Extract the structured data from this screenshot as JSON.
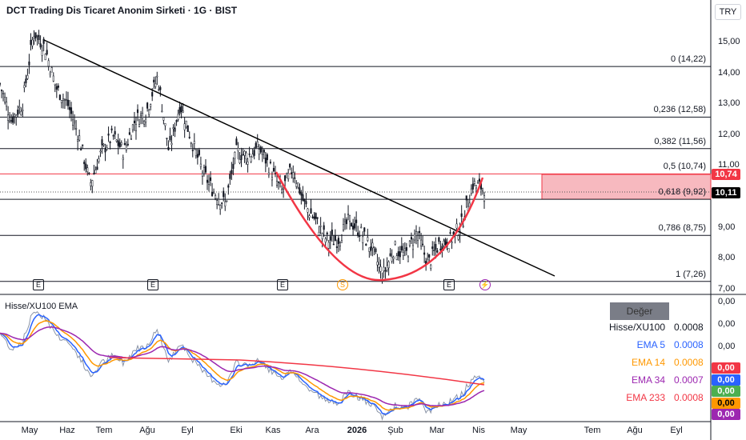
{
  "header": {
    "title": "DCT Trading Dis Ticaret Anonim Sirketi · 1G · BIST",
    "currency": "TRY"
  },
  "price_axis": [
    "15,00",
    "14,00",
    "13,00",
    "12,00",
    "11,00",
    "9,00",
    "8,00",
    "7,00"
  ],
  "price_tags": {
    "last": "10,74",
    "current": "10,11",
    "colors": {
      "last": "#f23645",
      "current": "#000000"
    }
  },
  "fib_levels": [
    {
      "label": "0 (14,22)",
      "price": 14.22
    },
    {
      "label": "0,236 (12,58)",
      "price": 12.58
    },
    {
      "label": "0,382 (11,56)",
      "price": 11.56
    },
    {
      "label": "0,5 (10,74)",
      "price": 10.74
    },
    {
      "label": "0,618 (9,92)",
      "price": 9.92
    },
    {
      "label": "0,786 (8,75)",
      "price": 8.75
    },
    {
      "label": "1 (7,26)",
      "price": 7.26
    }
  ],
  "events": [
    {
      "type": "earnings",
      "label": "E"
    },
    {
      "type": "earnings",
      "label": "E"
    },
    {
      "type": "earnings",
      "label": "E"
    },
    {
      "type": "split",
      "label": "S"
    },
    {
      "type": "earnings",
      "label": "E"
    },
    {
      "type": "dividend",
      "label": "⚡"
    }
  ],
  "time_axis": [
    "May",
    "Haz",
    "Tem",
    "Ağu",
    "Eyl",
    "Eki",
    "Kas",
    "Ara",
    "2026",
    "Şub",
    "Mar",
    "Nis",
    "May",
    "Tem",
    "Ağu",
    "Eyl"
  ],
  "price_series": [
    13.65,
    12.49,
    13.01,
    15.34,
    14.82,
    13.52,
    13.01,
    11.97,
    10.41,
    11.45,
    11.97,
    11.45,
    12.49,
    12.75,
    13.91,
    11.45,
    13.01,
    11.84,
    10.8,
    10.16,
    9.77,
    11.45,
    11.32,
    11.58,
    10.93,
    10.16,
    10.93,
    9.77,
    9.25,
    8.6,
    8.6,
    9.25,
    8.86,
    8.34,
    7.44,
    8.34,
    8.08,
    8.86,
    7.82,
    8.47,
    8.6,
    9.12,
    10.41,
    10.28
  ],
  "indicator": {
    "title": "Hisse/XU100 EMA",
    "header": "Değer",
    "rows": [
      {
        "name": "Hisse/XU100",
        "value": "0.0008",
        "color": "#131722"
      },
      {
        "name": "EMA 5",
        "value": "0.0008",
        "color": "#2962ff"
      },
      {
        "name": "EMA 14",
        "value": "0.0008",
        "color": "#ff9800"
      },
      {
        "name": "EMA 34",
        "value": "0.0007",
        "color": "#9c27b0"
      },
      {
        "name": "EMA 233",
        "value": "0.0008",
        "color": "#f23645"
      }
    ],
    "axis": [
      "0,00",
      "0,00",
      "0,00"
    ],
    "tags": [
      {
        "value": "0,00",
        "color": "#f23645"
      },
      {
        "value": "0,00",
        "color": "#2962ff"
      },
      {
        "value": "0,00",
        "color": "#4caf50"
      },
      {
        "value": "0,00",
        "color": "#ff9800"
      },
      {
        "value": "0,00",
        "color": "#9c27b0"
      }
    ]
  }
}
